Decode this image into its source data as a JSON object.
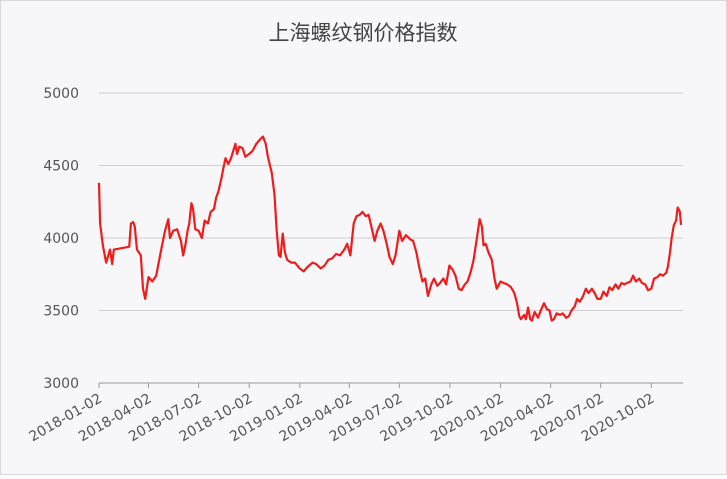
{
  "chart_data": {
    "type": "line",
    "title": "上海螺纹钢价格指数",
    "color": "#ee1c1c",
    "grid": true,
    "x": [
      "2018-01-02",
      "2018-01-04",
      "2018-01-09",
      "2018-01-15",
      "2018-01-22",
      "2018-01-26",
      "2018-01-29",
      "2018-02-12",
      "2018-02-26",
      "2018-03-01",
      "2018-03-05",
      "2018-03-08",
      "2018-03-12",
      "2018-03-19",
      "2018-03-23",
      "2018-03-27",
      "2018-04-02",
      "2018-04-09",
      "2018-04-16",
      "2018-04-23",
      "2018-05-02",
      "2018-05-08",
      "2018-05-11",
      "2018-05-17",
      "2018-05-24",
      "2018-05-31",
      "2018-06-04",
      "2018-06-08",
      "2018-06-12",
      "2018-06-15",
      "2018-06-19",
      "2018-06-22",
      "2018-06-26",
      "2018-07-02",
      "2018-07-08",
      "2018-07-13",
      "2018-07-19",
      "2018-07-24",
      "2018-07-30",
      "2018-08-03",
      "2018-08-07",
      "2018-08-13",
      "2018-08-16",
      "2018-08-20",
      "2018-08-25",
      "2018-08-30",
      "2018-09-03",
      "2018-09-07",
      "2018-09-10",
      "2018-09-14",
      "2018-09-20",
      "2018-09-25",
      "2018-10-02",
      "2018-10-08",
      "2018-10-15",
      "2018-10-22",
      "2018-10-27",
      "2018-11-01",
      "2018-11-05",
      "2018-11-12",
      "2018-11-17",
      "2018-11-21",
      "2018-11-25",
      "2018-11-28",
      "2018-12-02",
      "2018-12-06",
      "2018-12-10",
      "2018-12-17",
      "2018-12-24",
      "2019-01-02",
      "2019-01-09",
      "2019-01-16",
      "2019-01-25",
      "2019-02-01",
      "2019-02-09",
      "2019-02-16",
      "2019-02-23",
      "2019-03-02",
      "2019-03-09",
      "2019-03-16",
      "2019-03-24",
      "2019-03-29",
      "2019-04-04",
      "2019-04-10",
      "2019-04-15",
      "2019-04-21",
      "2019-04-26",
      "2019-05-02",
      "2019-05-07",
      "2019-05-12",
      "2019-05-18",
      "2019-05-23",
      "2019-05-29",
      "2019-06-03",
      "2019-06-09",
      "2019-06-14",
      "2019-06-20",
      "2019-06-25",
      "2019-07-02",
      "2019-07-07",
      "2019-07-14",
      "2019-07-22",
      "2019-07-27",
      "2019-08-02",
      "2019-08-07",
      "2019-08-13",
      "2019-08-18",
      "2019-08-23",
      "2019-08-29",
      "2019-09-03",
      "2019-09-09",
      "2019-09-14",
      "2019-09-20",
      "2019-09-25",
      "2019-10-01",
      "2019-10-07",
      "2019-10-12",
      "2019-10-18",
      "2019-10-23",
      "2019-10-29",
      "2019-11-03",
      "2019-11-09",
      "2019-11-14",
      "2019-11-20",
      "2019-11-25",
      "2019-11-29",
      "2019-12-02",
      "2019-12-06",
      "2019-12-11",
      "2019-12-17",
      "2019-12-22",
      "2019-12-26",
      "2020-01-02",
      "2020-01-07",
      "2020-01-14",
      "2020-01-21",
      "2020-01-27",
      "2020-02-01",
      "2020-02-05",
      "2020-02-08",
      "2020-02-14",
      "2020-02-17",
      "2020-02-21",
      "2020-02-25",
      "2020-02-28",
      "2020-03-04",
      "2020-03-10",
      "2020-03-15",
      "2020-03-21",
      "2020-03-26",
      "2020-03-31",
      "2020-04-04",
      "2020-04-08",
      "2020-04-13",
      "2020-04-19",
      "2020-04-24",
      "2020-04-30",
      "2020-05-05",
      "2020-05-10",
      "2020-05-16",
      "2020-05-20",
      "2020-05-25",
      "2020-05-31",
      "2020-06-05",
      "2020-06-10",
      "2020-06-16",
      "2020-06-21",
      "2020-06-26",
      "2020-07-02",
      "2020-07-07",
      "2020-07-13",
      "2020-07-18",
      "2020-07-23",
      "2020-07-29",
      "2020-08-03",
      "2020-08-09",
      "2020-08-14",
      "2020-08-19",
      "2020-08-25",
      "2020-08-30",
      "2020-09-04",
      "2020-09-10",
      "2020-09-15",
      "2020-09-21",
      "2020-09-26",
      "2020-10-02",
      "2020-10-07",
      "2020-10-13",
      "2020-10-18",
      "2020-10-23",
      "2020-10-29",
      "2020-11-01",
      "2020-11-05",
      "2020-11-08",
      "2020-11-12",
      "2020-11-16",
      "2020-11-19",
      "2020-11-23",
      "2020-11-25"
    ],
    "values": [
      4380,
      4100,
      3950,
      3830,
      3920,
      3820,
      3920,
      3930,
      3940,
      4100,
      4110,
      4080,
      3920,
      3880,
      3650,
      3580,
      3730,
      3700,
      3740,
      3880,
      4050,
      4130,
      4000,
      4050,
      4060,
      3980,
      3880,
      3950,
      4050,
      4100,
      4240,
      4200,
      4060,
      4050,
      4000,
      4120,
      4100,
      4180,
      4200,
      4280,
      4320,
      4420,
      4480,
      4550,
      4510,
      4550,
      4600,
      4650,
      4580,
      4630,
      4620,
      4560,
      4580,
      4600,
      4650,
      4680,
      4700,
      4650,
      4560,
      4450,
      4300,
      4050,
      3880,
      3870,
      4030,
      3900,
      3850,
      3830,
      3830,
      3790,
      3770,
      3800,
      3830,
      3820,
      3790,
      3810,
      3850,
      3860,
      3890,
      3880,
      3920,
      3960,
      3880,
      4100,
      4150,
      4160,
      4180,
      4150,
      4160,
      4080,
      3980,
      4050,
      4100,
      4050,
      3960,
      3870,
      3820,
      3880,
      4050,
      3980,
      4020,
      3990,
      3980,
      3900,
      3800,
      3700,
      3720,
      3600,
      3680,
      3720,
      3670,
      3690,
      3720,
      3680,
      3810,
      3780,
      3740,
      3650,
      3640,
      3680,
      3700,
      3770,
      3850,
      4000,
      4130,
      4080,
      3950,
      3960,
      3900,
      3850,
      3720,
      3650,
      3700,
      3690,
      3680,
      3660,
      3620,
      3550,
      3460,
      3440,
      3470,
      3440,
      3520,
      3440,
      3430,
      3490,
      3450,
      3500,
      3550,
      3510,
      3500,
      3430,
      3440,
      3480,
      3470,
      3480,
      3450,
      3460,
      3500,
      3530,
      3580,
      3560,
      3600,
      3650,
      3620,
      3650,
      3620,
      3580,
      3580,
      3630,
      3600,
      3660,
      3640,
      3680,
      3650,
      3690,
      3680,
      3690,
      3700,
      3740,
      3700,
      3720,
      3690,
      3680,
      3640,
      3650,
      3720,
      3730,
      3750,
      3740,
      3760,
      3800,
      3900,
      4000,
      4090,
      4120,
      4210,
      4180,
      4090
    ],
    "xlim": [
      "2018-01-02",
      "2020-11-25"
    ],
    "xticks": [
      "2018-01-02",
      "2018-04-02",
      "2018-07-02",
      "2018-10-02",
      "2019-01-02",
      "2019-04-02",
      "2019-07-02",
      "2019-10-02",
      "2020-01-02",
      "2020-04-02",
      "2020-07-02",
      "2020-10-02"
    ],
    "ylim": [
      3000,
      5000
    ],
    "yticks": [
      3000,
      3500,
      4000,
      4500,
      5000
    ]
  }
}
